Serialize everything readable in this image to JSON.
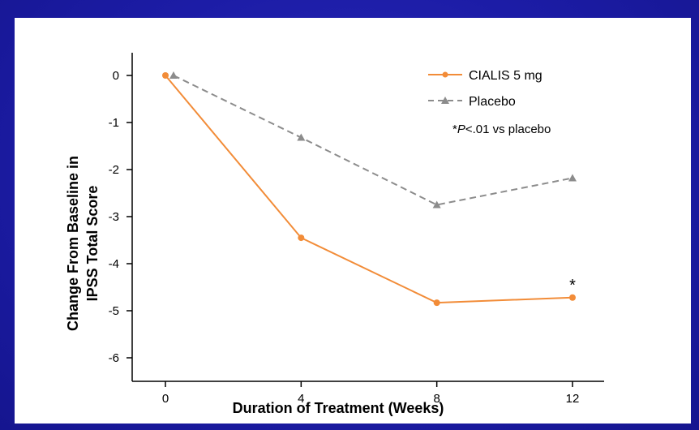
{
  "chart_data": {
    "type": "line",
    "x": [
      0,
      4,
      8,
      12
    ],
    "xlabel": "Duration of Treatment (Weeks)",
    "ylabel_line1": "Change From Baseline in",
    "ylabel_line2": "IPSS Total Score",
    "xlim": [
      0,
      12
    ],
    "ylim": [
      -6,
      0
    ],
    "xticks": [
      "0",
      "4",
      "8",
      "12"
    ],
    "yticks": [
      "0",
      "-1",
      "-2",
      "-3",
      "-4",
      "-5",
      "-6"
    ],
    "series": [
      {
        "name": "CIALIS 5 mg",
        "values": [
          0,
          -3.45,
          -4.83,
          -4.72
        ],
        "color": "#f28c38",
        "style": "solid",
        "marker": "circle"
      },
      {
        "name": "Placebo",
        "values": [
          0,
          -1.32,
          -2.75,
          -2.18
        ],
        "color": "#8c8c8c",
        "style": "dashed",
        "marker": "triangle"
      }
    ],
    "note_prefix": "*",
    "note_italic": "P",
    "note_suffix": "<.01 vs placebo",
    "significance_marker": "*",
    "legend_position": "top-right"
  }
}
